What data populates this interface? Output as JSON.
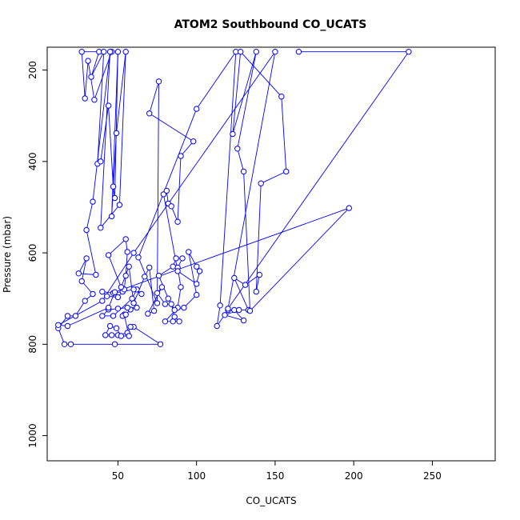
{
  "chart_data": {
    "type": "line",
    "title": "ATOM2 Southbound CO_UCATS",
    "xlabel": "CO_UCATS",
    "ylabel": "Pressure (mbar)",
    "xlim": [
      5,
      290
    ],
    "ylim": [
      1055,
      150
    ],
    "y_reversed": true,
    "xticks": [
      50,
      100,
      150,
      200,
      250
    ],
    "yticks": [
      200,
      400,
      600,
      800,
      1000
    ],
    "grid": false,
    "legend": "none",
    "series_color": "#0000ff",
    "marker": "open-circle",
    "series": [
      {
        "points": [
          [
            46,
            160
          ],
          [
            35,
            265
          ],
          [
            31,
            180
          ],
          [
            29,
            262
          ],
          [
            27,
            160
          ],
          [
            38,
            160
          ],
          [
            33,
            215
          ],
          [
            41,
            160
          ],
          [
            37,
            405
          ],
          [
            39,
            400
          ],
          [
            44,
            278
          ],
          [
            47,
            455
          ],
          [
            48,
            480
          ],
          [
            50,
            160
          ],
          [
            46,
            520
          ],
          [
            49,
            338
          ],
          [
            55,
            160
          ],
          [
            51,
            495
          ],
          [
            39,
            545
          ],
          [
            45,
            160
          ],
          [
            34,
            488
          ],
          [
            30,
            550
          ],
          [
            36,
            648
          ],
          [
            25,
            645
          ],
          [
            30,
            612
          ],
          [
            27,
            662
          ],
          [
            34,
            690
          ],
          [
            29,
            705
          ],
          [
            23,
            738
          ],
          [
            18,
            738
          ],
          [
            12,
            765
          ],
          [
            16,
            800
          ],
          [
            20,
            800
          ],
          [
            48,
            800
          ],
          [
            77,
            800
          ],
          [
            60,
            762
          ],
          [
            58,
            762
          ],
          [
            56,
            775
          ],
          [
            50,
            780
          ],
          [
            46,
            780
          ],
          [
            42,
            780
          ],
          [
            45,
            760
          ],
          [
            49,
            765
          ],
          [
            52,
            782
          ],
          [
            57,
            782
          ],
          [
            54,
            735
          ],
          [
            53,
            738
          ],
          [
            55,
            735
          ],
          [
            58,
            724
          ],
          [
            62,
            720
          ],
          [
            56,
            720
          ],
          [
            50,
            722
          ],
          [
            44,
            724
          ],
          [
            40,
            738
          ],
          [
            47,
            738
          ],
          [
            59,
            700
          ],
          [
            62,
            680
          ],
          [
            65,
            690
          ],
          [
            60,
            680
          ],
          [
            53,
            685
          ],
          [
            47,
            688
          ],
          [
            40,
            685
          ],
          [
            43,
            695
          ],
          [
            50,
            697
          ],
          [
            54,
            680
          ],
          [
            55,
            650
          ],
          [
            56,
            598
          ],
          [
            55,
            570
          ],
          [
            44,
            605
          ],
          [
            52,
            675
          ],
          [
            57,
            630
          ],
          [
            60,
            710
          ],
          [
            67,
            652
          ],
          [
            70,
            632
          ],
          [
            73,
            727
          ],
          [
            69,
            733
          ],
          [
            78,
            675
          ],
          [
            75,
            688
          ],
          [
            80,
            712
          ],
          [
            84,
            712
          ],
          [
            86,
            740
          ],
          [
            89,
            750
          ],
          [
            85,
            750
          ],
          [
            80,
            750
          ],
          [
            88,
            720
          ],
          [
            90,
            675
          ],
          [
            88,
            632
          ],
          [
            91,
            612
          ],
          [
            87,
            612
          ],
          [
            85,
            630
          ],
          [
            76,
            650
          ],
          [
            82,
            700
          ],
          [
            86,
            725
          ],
          [
            92,
            720
          ],
          [
            100,
            692
          ],
          [
            95,
            598
          ],
          [
            100,
            630
          ],
          [
            102,
            640
          ],
          [
            100,
            668
          ],
          [
            88,
            640
          ],
          [
            79,
            472
          ],
          [
            81,
            464
          ],
          [
            82,
            492
          ],
          [
            84,
            498
          ],
          [
            88,
            532
          ],
          [
            90,
            388
          ],
          [
            98,
            356
          ],
          [
            70,
            295
          ],
          [
            76,
            225
          ],
          [
            75,
            710
          ],
          [
            63,
            610
          ],
          [
            100,
            285
          ],
          [
            125,
            160
          ],
          [
            115,
            715
          ],
          [
            113,
            760
          ],
          [
            120,
            725
          ],
          [
            124,
            725
          ],
          [
            130,
            748
          ],
          [
            118,
            736
          ],
          [
            127,
            725
          ],
          [
            133,
            725
          ],
          [
            124,
            655
          ],
          [
            131,
            670
          ],
          [
            140,
            648
          ],
          [
            138,
            685
          ],
          [
            141,
            448
          ],
          [
            157,
            422
          ],
          [
            154,
            258
          ],
          [
            128,
            160
          ],
          [
            123,
            340
          ],
          [
            138,
            160
          ],
          [
            126,
            372
          ],
          [
            130,
            422
          ],
          [
            134,
            727
          ],
          [
            197,
            502
          ],
          [
            48,
            686
          ],
          [
            44,
            720
          ],
          [
            18,
            760
          ],
          [
            12,
            758
          ],
          [
            40,
            705
          ],
          [
            60,
            600
          ],
          [
            150,
            160
          ],
          [
            120,
            722
          ],
          [
            235,
            160
          ],
          [
            165,
            160
          ]
        ]
      }
    ]
  }
}
